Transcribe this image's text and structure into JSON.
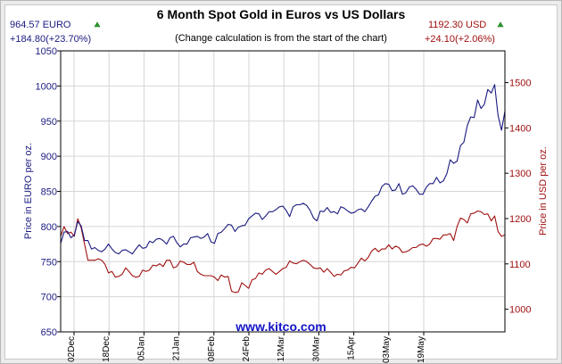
{
  "chart_data": {
    "type": "line",
    "title": "6 Month Spot Gold in Euros vs US Dollars",
    "subtitle": "(Change calculation is from the start of the chart)",
    "watermark": "www.kitco.com",
    "ylabel_left": "Price in EURO per oz.",
    "ylabel_right": "Price in USD per oz.",
    "left_price": "964.57 EURO",
    "left_change": "+184.80(+23.70%)",
    "right_price": "1192.30 USD",
    "right_change": "+24.10(+2.06%)",
    "colors": {
      "euro": "#1a1a80",
      "usd": "#a01010",
      "up_arrow": "#2aa02a"
    },
    "grid": true,
    "ylim_left": [
      650,
      1050
    ],
    "ylim_right": [
      950,
      1570
    ],
    "yticks_left": [
      "650",
      "700",
      "750",
      "800",
      "850",
      "900",
      "950",
      "1000",
      "1050"
    ],
    "yticks_right": [
      "1000",
      "1100",
      "1200",
      "1300",
      "1400",
      "1500"
    ],
    "xticks": [
      "02Dec",
      "18Dec",
      "05Jan",
      "21Jan",
      "08Feb",
      "24Feb",
      "12Mar",
      "30Mar",
      "15Apr",
      "03May",
      "19May"
    ],
    "series": [
      {
        "name": "EURO",
        "axis": "left",
        "values": [
          776,
          792,
          793,
          784,
          788,
          807,
          801,
          780,
          780,
          768,
          770,
          766,
          764,
          768,
          775,
          768,
          763,
          761,
          766,
          767,
          764,
          761,
          768,
          774,
          769,
          770,
          779,
          777,
          782,
          783,
          780,
          775,
          784,
          786,
          777,
          771,
          775,
          775,
          784,
          785,
          786,
          783,
          785,
          790,
          778,
          776,
          790,
          792,
          797,
          803,
          802,
          793,
          799,
          801,
          802,
          811,
          815,
          819,
          818,
          810,
          815,
          821,
          821,
          824,
          828,
          829,
          823,
          814,
          828,
          831,
          831,
          833,
          830,
          823,
          812,
          808,
          822,
          821,
          827,
          820,
          821,
          818,
          828,
          826,
          822,
          819,
          820,
          824,
          825,
          821,
          828,
          836,
          843,
          845,
          857,
          861,
          860,
          851,
          852,
          861,
          846,
          848,
          856,
          858,
          853,
          846,
          846,
          856,
          861,
          861,
          870,
          862,
          865,
          875,
          895,
          890,
          893,
          915,
          920,
          944,
          956,
          955,
          980,
          968,
          974,
          995,
          990,
          1002,
          958,
          937,
          964
        ]
      },
      {
        "name": "USD",
        "axis": "left",
        "values": [
          786,
          800,
          790,
          792,
          786,
          811,
          798,
          775,
          752,
          752,
          752,
          754,
          752,
          746,
          734,
          736,
          728,
          729,
          732,
          741,
          736,
          730,
          728,
          729,
          738,
          736,
          738,
          745,
          744,
          747,
          743,
          752,
          752,
          741,
          743,
          751,
          749,
          746,
          746,
          749,
          736,
          732,
          730,
          730,
          730,
          728,
          723,
          731,
          728,
          729,
          708,
          706,
          707,
          720,
          716,
          712,
          724,
          726,
          734,
          732,
          738,
          740,
          736,
          732,
          736,
          740,
          742,
          751,
          748,
          747,
          750,
          752,
          750,
          746,
          741,
          740,
          741,
          735,
          740,
          735,
          729,
          732,
          731,
          737,
          738,
          742,
          741,
          748,
          755,
          751,
          756,
          765,
          769,
          764,
          768,
          768,
          774,
          768,
          772,
          770,
          763,
          764,
          766,
          770,
          770,
          774,
          775,
          772,
          775,
          783,
          783,
          782,
          788,
          788,
          790,
          780,
          800,
          812,
          810,
          805,
          818,
          819,
          822,
          821,
          817,
          818,
          808,
          815,
          793,
          786,
          788
        ]
      }
    ]
  }
}
